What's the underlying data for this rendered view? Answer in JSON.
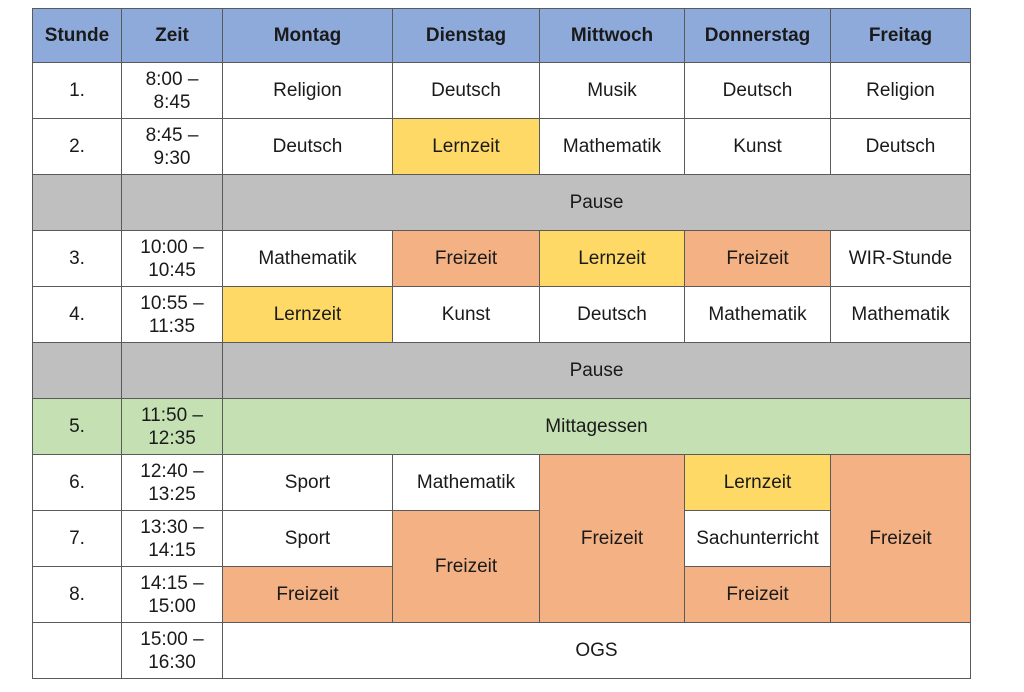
{
  "header": {
    "stunde": "Stunde",
    "zeit": "Zeit",
    "montag": "Montag",
    "dienstag": "Dienstag",
    "mittwoch": "Mittwoch",
    "donnerstag": "Donnerstag",
    "freitag": "Freitag"
  },
  "rows": {
    "r1": {
      "nr": "1.",
      "zeit": "8:00 –\n8:45",
      "mo": "Religion",
      "di": "Deutsch",
      "mi": "Musik",
      "do": "Deutsch",
      "fr": "Religion"
    },
    "r2": {
      "nr": "2.",
      "zeit": "8:45 –\n9:30",
      "mo": "Deutsch",
      "di": "Lernzeit",
      "mi": "Mathematik",
      "do": "Kunst",
      "fr": "Deutsch"
    },
    "pause1": {
      "label": "Pause"
    },
    "r3": {
      "nr": "3.",
      "zeit": "10:00 –\n10:45",
      "mo": "Mathematik",
      "di": "Freizeit",
      "mi": "Lernzeit",
      "do": "Freizeit",
      "fr": "WIR-Stunde"
    },
    "r4": {
      "nr": "4.",
      "zeit": "10:55 –\n11:35",
      "mo": "Lernzeit",
      "di": "Kunst",
      "mi": "Deutsch",
      "do": "Mathematik",
      "fr": "Mathematik"
    },
    "pause2": {
      "label": "Pause"
    },
    "r5": {
      "nr": "5.",
      "zeit": "11:50 –\n12:35",
      "label": "Mittagessen"
    },
    "r6": {
      "nr": "6.",
      "zeit": "12:40 –\n13:25",
      "mo": "Sport",
      "di": "Mathematik",
      "mi": "Freizeit",
      "do": "Lernzeit",
      "fr": "Freizeit"
    },
    "r7": {
      "nr": "7.",
      "zeit": "13:30 –\n14:15",
      "mo": "Sport",
      "di": "Freizeit",
      "do": "Sachunterricht"
    },
    "r8": {
      "nr": "8.",
      "zeit": "14:15 –\n15:00",
      "mo": "Freizeit",
      "do": "Freizeit"
    },
    "ogs": {
      "nr": "",
      "zeit": "15:00 –\n16:30",
      "label": "OGS"
    }
  },
  "colors": {
    "header": "#8eaadb",
    "lernzeit": "#ffd965",
    "freizeit": "#f4b183",
    "pause": "#bfbfbf",
    "mittagessen": "#c5e0b3"
  }
}
